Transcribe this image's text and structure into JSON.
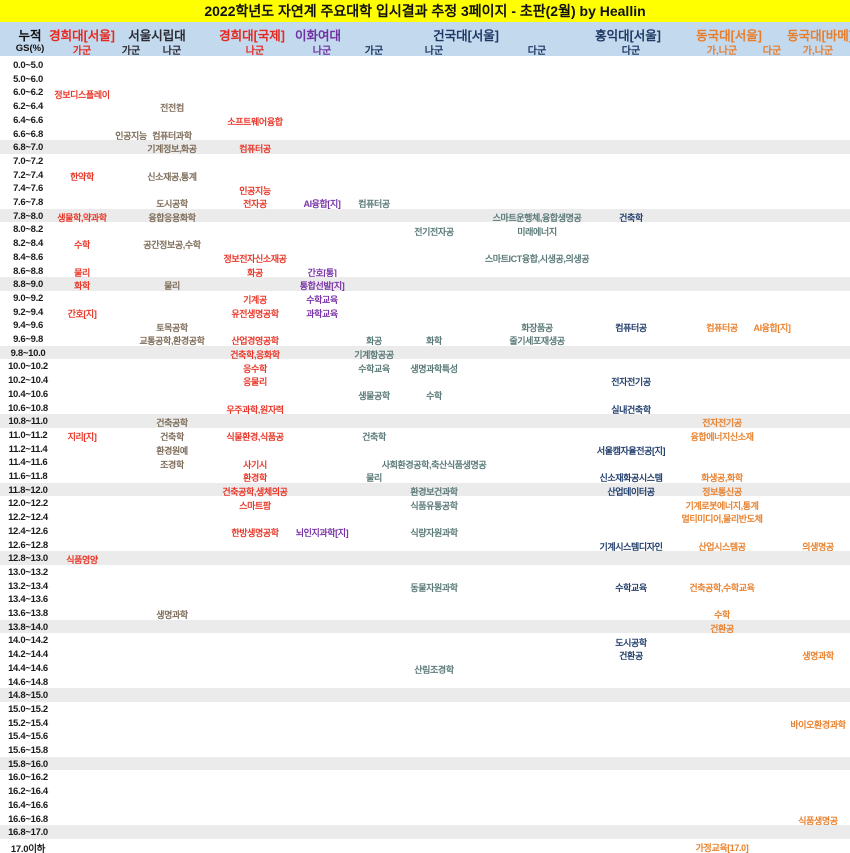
{
  "title": "2022학년도 자연계 주요대학 입시결과 추정 3페이지 - 초판(2월) by Heallin",
  "colors": {
    "title_bg": "#ffff00",
    "header_bg": "#c3d9ee",
    "stripe": "#ebebeb",
    "header": {
      "khu": "#e8281e",
      "uos": "#2b2b33",
      "ewha": "#7030a0",
      "konkuk": "#1f3864",
      "hongik": "#1f3864",
      "dongguk": "#e87e2b",
      "corner": "#111111"
    },
    "body": {
      "khu": "#e8382a",
      "uos": "#7d6c59",
      "ewha": "#7a35a8",
      "konkuk": "#5a7a78",
      "hongik": "#24406e",
      "dongguk": "#e8822f"
    }
  },
  "chart_data": {
    "type": "table",
    "title": "2022학년도 자연계 주요대학 입시결과 추정 3페이지 - 초판(2월) by Heallin",
    "row_header": {
      "top": "누적",
      "bottom": "GS(%)"
    },
    "universities": [
      {
        "label": "경희대[서울]",
        "uni": "khu",
        "center": 82
      },
      {
        "label": "서울시립대",
        "uni": "uos",
        "center": 157
      },
      {
        "label": "경희대[국제]",
        "uni": "khu",
        "center": 252
      },
      {
        "label": "이화여대",
        "uni": "ewha",
        "center": 318
      },
      {
        "label": "건국대[서울]",
        "uni": "konkuk",
        "center": 466
      },
      {
        "label": "홍익대[서울]",
        "uni": "hongik",
        "center": 628
      },
      {
        "label": "동국대[서울]",
        "uni": "dongguk",
        "center": 729
      },
      {
        "label": "동국대[바메]",
        "uni": "dongguk",
        "center": 820
      }
    ],
    "groups": [
      {
        "label": "가군",
        "col": "khu_s"
      },
      {
        "label": "가군",
        "col": "uos_ga"
      },
      {
        "label": "나군",
        "col": "uos_na"
      },
      {
        "label": "나군",
        "col": "khu_i"
      },
      {
        "label": "나군",
        "col": "ewha"
      },
      {
        "label": "가군",
        "col": "ku_ga"
      },
      {
        "label": "나군",
        "col": "ku_na"
      },
      {
        "label": "다군",
        "col": "ku_da"
      },
      {
        "label": "다군",
        "col": "hongik"
      },
      {
        "label": "가,나군",
        "col": "dg_gana"
      },
      {
        "label": "다군",
        "col": "dg_da"
      },
      {
        "label": "가,나군",
        "col": "dg_bame"
      }
    ],
    "columns": {
      "khu_s": {
        "center": 82,
        "uni": "khu"
      },
      "uos_ga": {
        "center": 131,
        "uni": "uos"
      },
      "uos_na": {
        "center": 172,
        "uni": "uos"
      },
      "khu_i": {
        "center": 255,
        "uni": "khu"
      },
      "ewha": {
        "center": 322,
        "uni": "ewha"
      },
      "ku_ga": {
        "center": 374,
        "uni": "konkuk"
      },
      "ku_na": {
        "center": 434,
        "uni": "konkuk"
      },
      "ku_da": {
        "center": 537,
        "uni": "konkuk"
      },
      "hongik": {
        "center": 631,
        "uni": "hongik"
      },
      "dg_gana": {
        "center": 722,
        "uni": "dongguk"
      },
      "dg_da": {
        "center": 772,
        "uni": "dongguk"
      },
      "dg_bame": {
        "center": 818,
        "uni": "dongguk"
      }
    },
    "rows": [
      {
        "label": "0.0~5.0",
        "cells": {}
      },
      {
        "label": "5.0~6.0",
        "cells": {}
      },
      {
        "label": "6.0~6.2",
        "cells": {
          "khu_s": "정보디스플레이"
        }
      },
      {
        "label": "6.2~6.4",
        "cells": {
          "uos_na": "전전컴"
        }
      },
      {
        "label": "6.4~6.6",
        "cells": {
          "khu_i": "소프트웨어융합"
        }
      },
      {
        "label": "6.6~6.8",
        "cells": {
          "uos_ga": "인공지능",
          "uos_na": "컴퓨터과학"
        }
      },
      {
        "label": "6.8~7.0",
        "cells": {
          "uos_na": "기계정보,화공",
          "khu_i": "컴퓨터공"
        }
      },
      {
        "label": "7.0~7.2",
        "cells": {}
      },
      {
        "label": "7.2~7.4",
        "cells": {
          "khu_s": "한약학",
          "uos_na": "신소재공,통계"
        }
      },
      {
        "label": "7.4~7.6",
        "cells": {
          "khu_i": "인공지능"
        }
      },
      {
        "label": "7.6~7.8",
        "cells": {
          "uos_na": "도시공학",
          "khu_i": "전자공",
          "ewha": "AI융합[지]",
          "ku_ga": "컴퓨터공"
        }
      },
      {
        "label": "7.8~8.0",
        "cells": {
          "khu_s": "생물학,약과학",
          "uos_na": "융합응용화학",
          "ku_da": "스마트운행체,융합생명공",
          "hongik": "건축학"
        }
      },
      {
        "label": "8.0~8.2",
        "cells": {
          "ku_na": "전기전자공",
          "ku_da": "미래에너지"
        }
      },
      {
        "label": "8.2~8.4",
        "cells": {
          "khu_s": "수학",
          "uos_na": "공간정보공,수학"
        }
      },
      {
        "label": "8.4~8.6",
        "cells": {
          "khu_i": "정보전자신소재공",
          "ku_da": "스마트ICT융합,시생공,의생공"
        }
      },
      {
        "label": "8.6~8.8",
        "cells": {
          "khu_s": "물리",
          "khu_i": "화공",
          "ewha": "간호[통]"
        }
      },
      {
        "label": "8.8~9.0",
        "cells": {
          "khu_s": "화학",
          "uos_na": "물리",
          "ewha": "통합선발[지]"
        }
      },
      {
        "label": "9.0~9.2",
        "cells": {
          "khu_i": "기계공",
          "ewha": "수학교육"
        }
      },
      {
        "label": "9.2~9.4",
        "cells": {
          "khu_s": "간호[지]",
          "khu_i": "유전생명공학",
          "ewha": "과학교육"
        }
      },
      {
        "label": "9.4~9.6",
        "cells": {
          "uos_na": "토목공학",
          "ku_da": "화장품공",
          "hongik": "컴퓨터공",
          "dg_gana": "컴퓨터공",
          "dg_da": "AI융합[지]"
        }
      },
      {
        "label": "9.6~9.8",
        "cells": {
          "uos_na": "교통공학,환경공학",
          "khu_i": "산업경영공학",
          "ku_ga": "화공",
          "ku_na": "화학",
          "ku_da": "줄기세포재생공"
        }
      },
      {
        "label": "9.8~10.0",
        "cells": {
          "khu_i": "건축학,응화학",
          "ku_ga": "기계항공공"
        }
      },
      {
        "label": "10.0~10.2",
        "cells": {
          "khu_i": "응수학",
          "ku_ga": "수학교육",
          "ku_na": "생명과학특성"
        }
      },
      {
        "label": "10.2~10.4",
        "cells": {
          "khu_i": "응물리",
          "hongik": "전자전기공"
        }
      },
      {
        "label": "10.4~10.6",
        "cells": {
          "ku_ga": "생물공학",
          "ku_na": "수학"
        }
      },
      {
        "label": "10.6~10.8",
        "cells": {
          "khu_i": "우주과학,원자력",
          "hongik": "실내건축학"
        }
      },
      {
        "label": "10.8~11.0",
        "cells": {
          "uos_na": "건축공학",
          "dg_gana": "전자전기공"
        }
      },
      {
        "label": "11.0~11.2",
        "cells": {
          "khu_s": "지리[지]",
          "uos_na": "건축학",
          "khu_i": "식물환경,식품공",
          "ku_ga": "건축학",
          "dg_gana": "융합에너지신소재"
        }
      },
      {
        "label": "11.2~11.4",
        "cells": {
          "uos_na": "환경원예",
          "hongik": "서울캠자율전공[지]"
        }
      },
      {
        "label": "11.4~11.6",
        "cells": {
          "uos_na": "조경학",
          "khu_i": "사기시",
          "ku_na": "사회환경공학,축산식품생명공"
        }
      },
      {
        "label": "11.6~11.8",
        "cells": {
          "khu_i": "환경학",
          "ku_ga": "물리",
          "hongik": "신소재화공시스템",
          "dg_gana": "화생공,화학"
        }
      },
      {
        "label": "11.8~12.0",
        "cells": {
          "khu_i": "건축공학,생체의공",
          "ku_na": "환경보건과학",
          "hongik": "산업데이터공",
          "dg_gana": "정보통신공"
        }
      },
      {
        "label": "12.0~12.2",
        "cells": {
          "khu_i": "스마트팜",
          "ku_na": "식품유통공학",
          "dg_gana": "기계로봇에너지,통계"
        }
      },
      {
        "label": "12.2~12.4",
        "cells": {
          "dg_gana": "멀티미디어,물리반도체"
        }
      },
      {
        "label": "12.4~12.6",
        "cells": {
          "khu_i": "한방생명공학",
          "ewha": "뇌인지과학[지]",
          "ku_na": "식량자원과학"
        }
      },
      {
        "label": "12.6~12.8",
        "cells": {
          "hongik": "기계시스템디자인",
          "dg_gana": "산업시스템공",
          "dg_bame": "의생명공"
        }
      },
      {
        "label": "12.8~13.0",
        "cells": {
          "khu_s": "식품영양"
        }
      },
      {
        "label": "13.0~13.2",
        "cells": {}
      },
      {
        "label": "13.2~13.4",
        "cells": {
          "ku_na": "동물자원과학",
          "hongik": "수학교육",
          "dg_gana": "건축공학,수학교육"
        }
      },
      {
        "label": "13.4~13.6",
        "cells": {}
      },
      {
        "label": "13.6~13.8",
        "cells": {
          "uos_na": "생명과학",
          "dg_gana": "수학"
        }
      },
      {
        "label": "13.8~14.0",
        "cells": {
          "dg_gana": "건환공"
        }
      },
      {
        "label": "14.0~14.2",
        "cells": {
          "hongik": "도시공학"
        }
      },
      {
        "label": "14.2~14.4",
        "cells": {
          "hongik": "건환공",
          "dg_bame": "생명과학"
        }
      },
      {
        "label": "14.4~14.6",
        "cells": {
          "ku_na": "산림조경학"
        }
      },
      {
        "label": "14.6~14.8",
        "cells": {}
      },
      {
        "label": "14.8~15.0",
        "cells": {}
      },
      {
        "label": "15.0~15.2",
        "cells": {}
      },
      {
        "label": "15.2~15.4",
        "cells": {
          "dg_bame": "바이오환경과학"
        }
      },
      {
        "label": "15.4~15.6",
        "cells": {}
      },
      {
        "label": "15.6~15.8",
        "cells": {}
      },
      {
        "label": "15.8~16.0",
        "cells": {}
      },
      {
        "label": "16.0~16.2",
        "cells": {}
      },
      {
        "label": "16.2~16.4",
        "cells": {}
      },
      {
        "label": "16.4~16.6",
        "cells": {}
      },
      {
        "label": "16.6~16.8",
        "cells": {
          "dg_bame": "식품생명공"
        }
      },
      {
        "label": "16.8~17.0",
        "cells": {}
      },
      {
        "label": "17.0이하",
        "cells": {
          "dg_gana": "가정교육[17.0]"
        }
      }
    ]
  }
}
